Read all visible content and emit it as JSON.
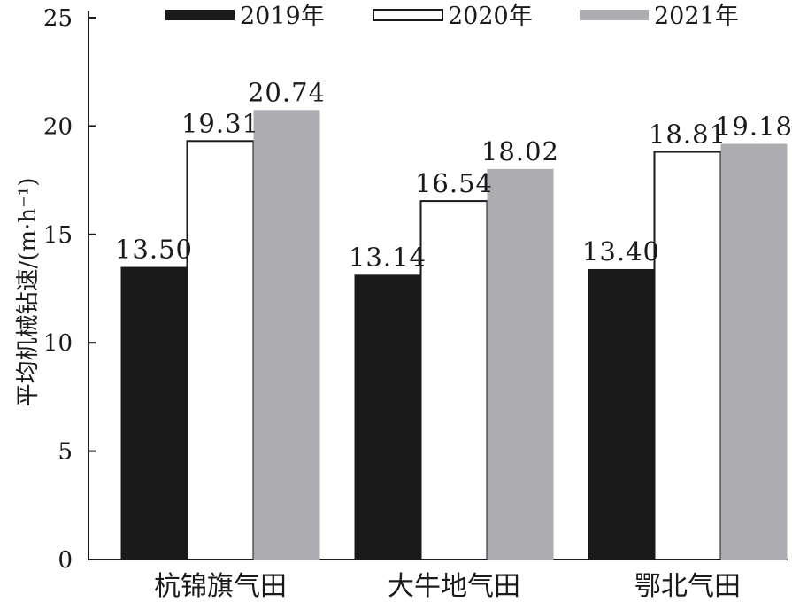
{
  "chart_data": {
    "type": "bar",
    "ylabel": "平均机械钻速/(m·h⁻¹)",
    "ylim": [
      0,
      25
    ],
    "yticks": [
      0,
      5,
      10,
      15,
      20,
      25
    ],
    "categories": [
      "杭锦旗气田",
      "大牛地气田",
      "鄂北气田"
    ],
    "series": [
      {
        "name": "2019年",
        "color": "#1a1a1a",
        "style": "solid",
        "values": [
          13.5,
          13.14,
          13.4
        ],
        "labels": [
          "13.50",
          "13.14",
          "13.40"
        ]
      },
      {
        "name": "2020年",
        "color": "#ffffff",
        "style": "outline",
        "values": [
          19.31,
          16.54,
          18.81
        ],
        "labels": [
          "19.31",
          "16.54",
          "18.81"
        ]
      },
      {
        "name": "2021年",
        "color": "#adadb1",
        "style": "solid",
        "values": [
          20.74,
          18.02,
          19.18
        ],
        "labels": [
          "20.74",
          "18.02",
          "19.18"
        ]
      }
    ],
    "legend_position": "top",
    "grid": false
  }
}
